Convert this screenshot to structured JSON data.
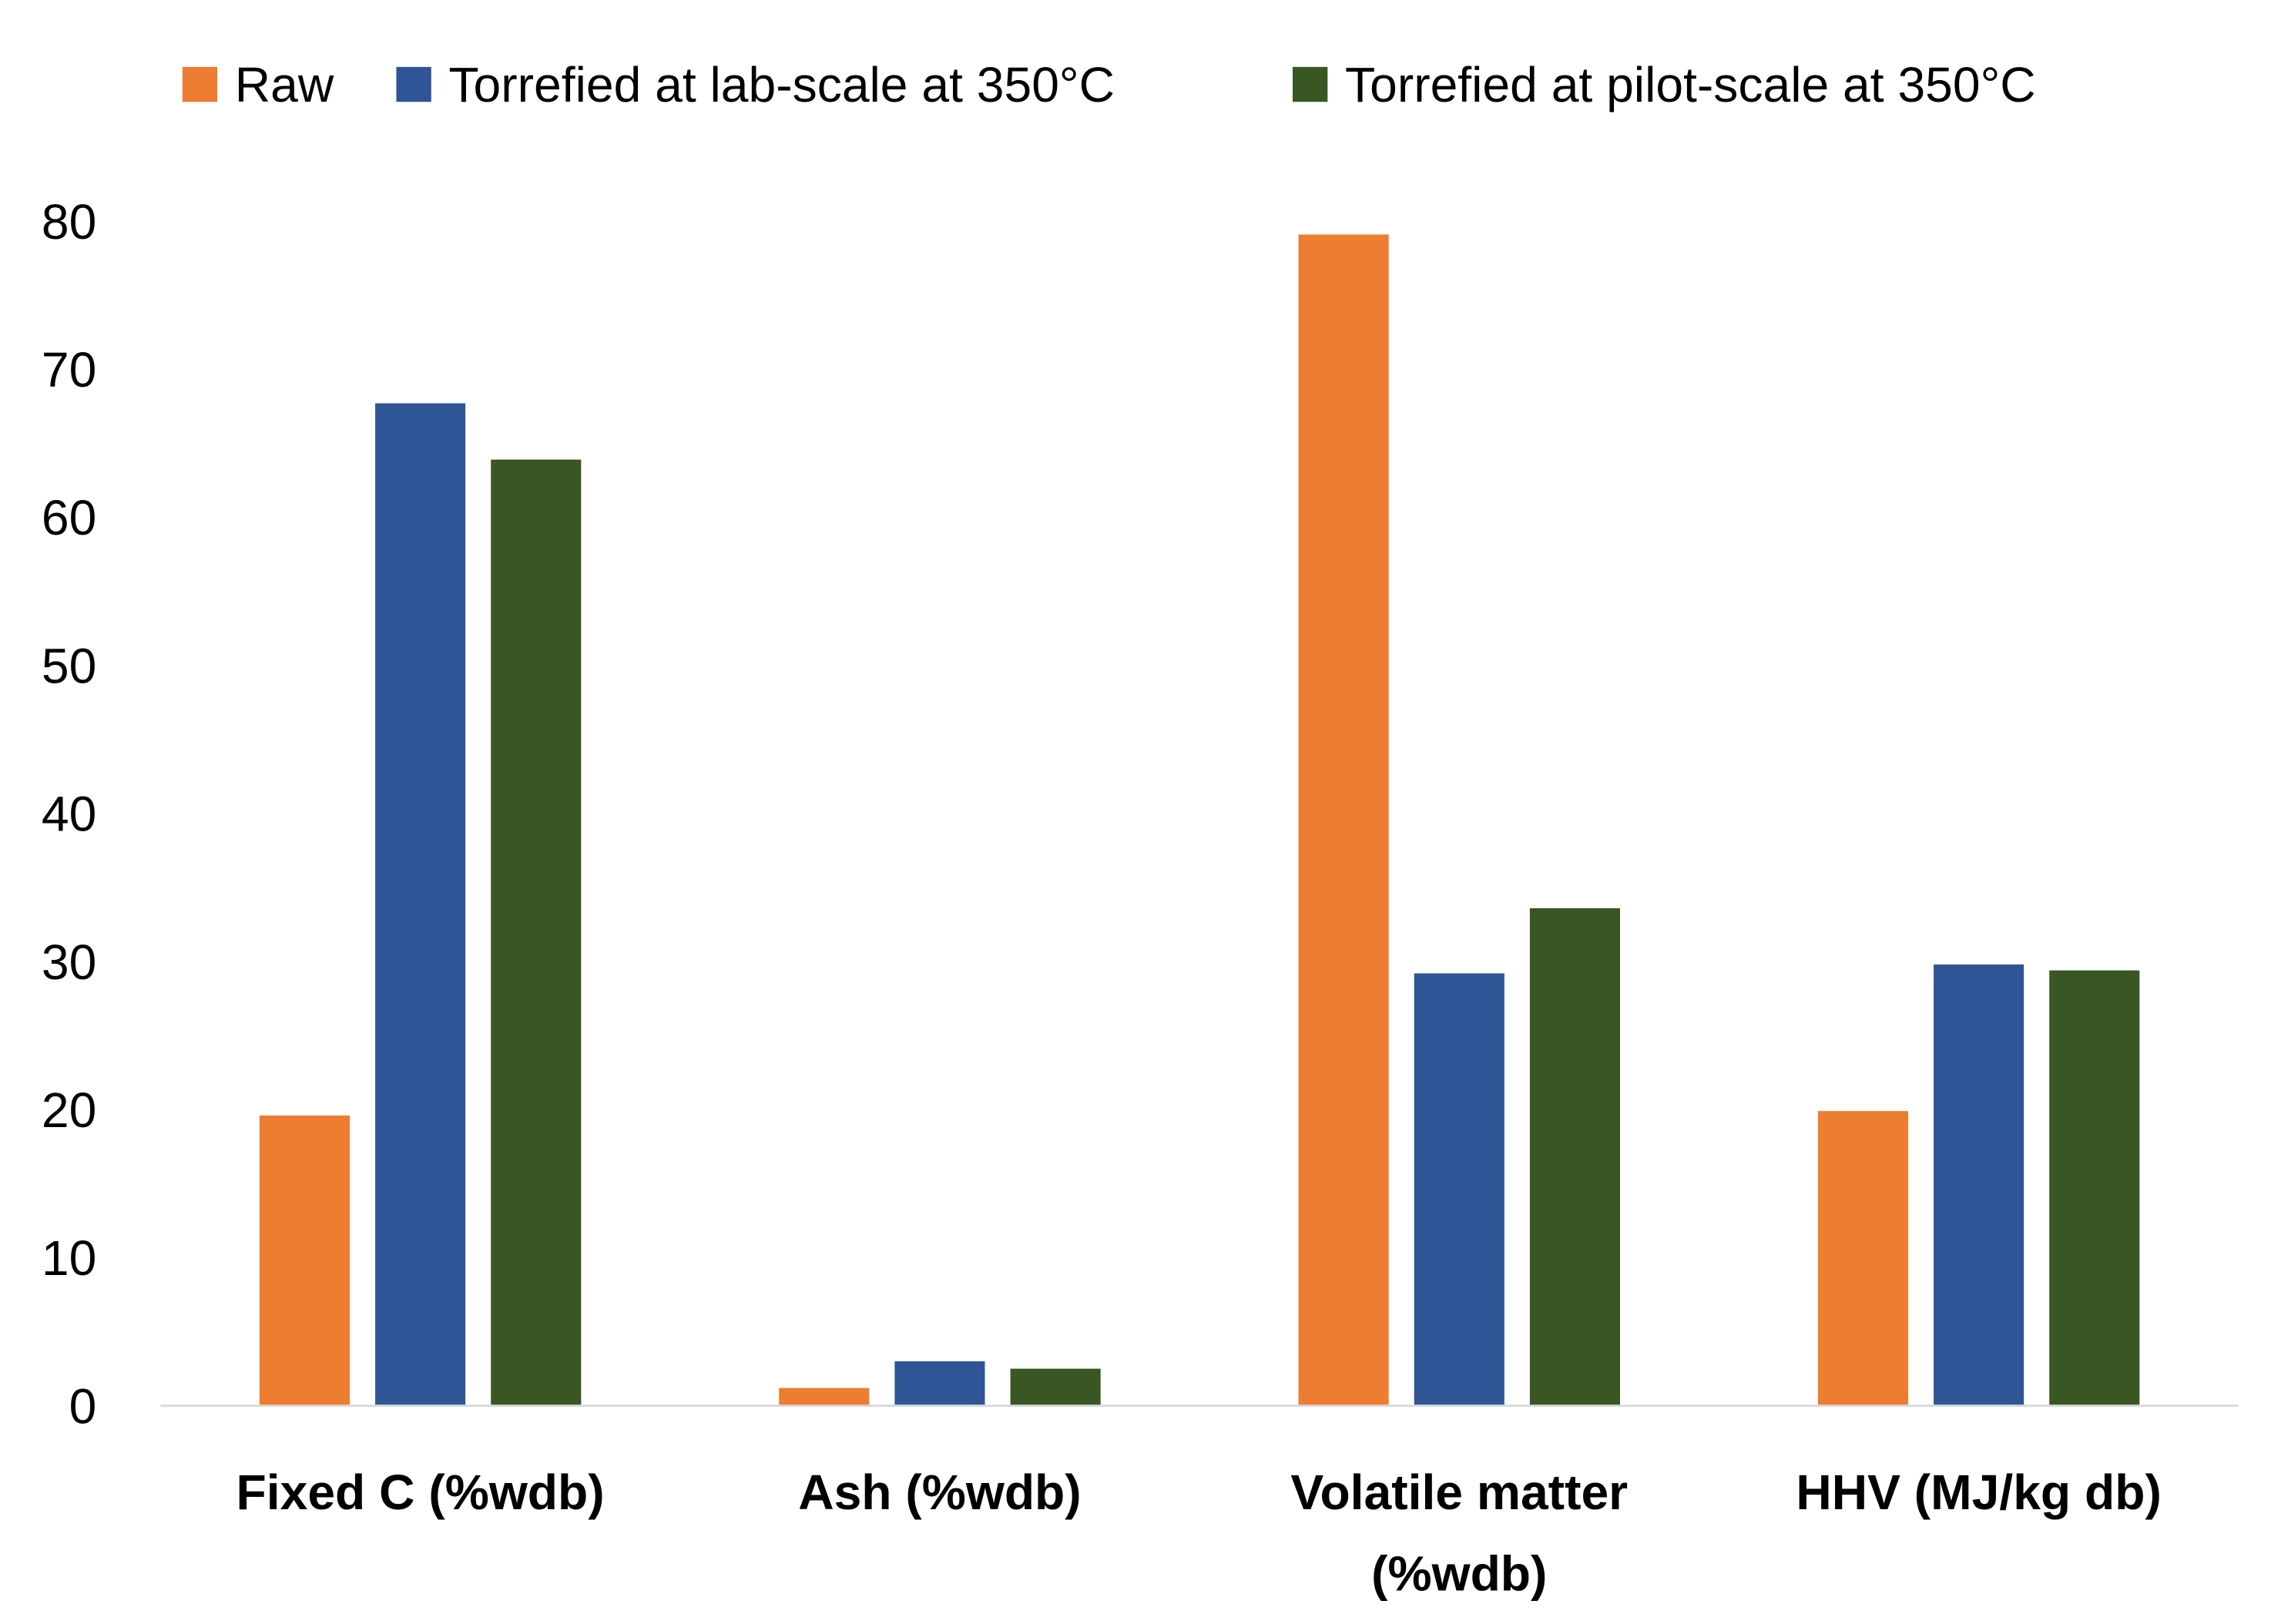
{
  "chart_data": {
    "type": "bar",
    "title": "",
    "xlabel": "",
    "ylabel": "",
    "ylim": [
      0,
      80
    ],
    "yticks": [
      "0",
      "10",
      "20",
      "30",
      "40",
      "50",
      "60",
      "70",
      "80"
    ],
    "grid": false,
    "legend_position": "top",
    "categories": [
      [
        "Fixed C (%wdb)"
      ],
      [
        "Ash (%wdb)"
      ],
      [
        "Volatile matter",
        "(%wdb)"
      ],
      [
        "HHV (MJ/kg db)"
      ]
    ],
    "series": [
      {
        "name": "Raw",
        "color": "#ED7D31",
        "values": [
          19.6,
          1.2,
          79.1,
          19.9
        ]
      },
      {
        "name": "Torrefied at lab-scale at 350°C",
        "color": "#2F5597",
        "values": [
          67.7,
          3.0,
          29.2,
          29.8
        ]
      },
      {
        "name": "Torrefied at pilot-scale at 350°C",
        "color": "#385723",
        "values": [
          63.9,
          2.5,
          33.6,
          29.4
        ]
      }
    ]
  }
}
